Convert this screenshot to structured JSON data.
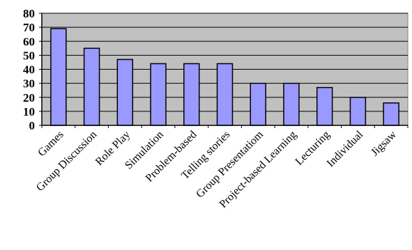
{
  "chart_data": {
    "type": "bar",
    "title": "",
    "xlabel": "",
    "ylabel": "",
    "categories": [
      "Games",
      "Group Discussion",
      "Role Play",
      "Simulation",
      "Problem-based",
      "Telling stories",
      "Group Presentatiom",
      "Project-based Learning",
      "Lecturing",
      "Individual",
      "Jigsaw"
    ],
    "values": [
      69,
      55,
      47,
      44,
      44,
      44,
      30,
      30,
      27,
      20,
      16
    ],
    "ylim": [
      0,
      80
    ],
    "yticks": [
      "0",
      "10",
      "20",
      "30",
      "40",
      "50",
      "60",
      "70",
      "80"
    ],
    "grid": true,
    "legend": "none",
    "colors": {
      "bar_fill": "#9999ff",
      "bar_stroke": "#000000",
      "plot_background": "#c0c0c0",
      "gridline": "#000000"
    }
  }
}
